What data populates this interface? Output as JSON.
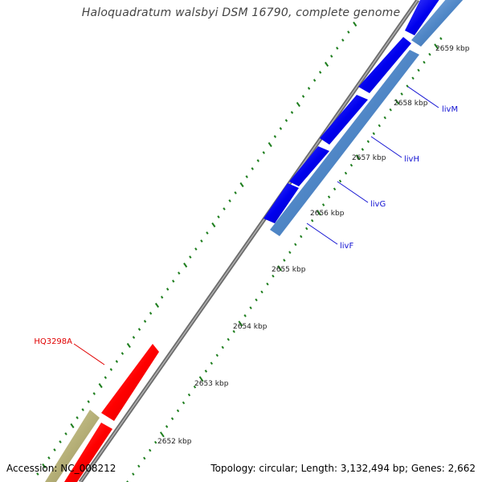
{
  "title": "Haloquadratum walsbyi DSM 16790, complete genome",
  "footer": {
    "accession": "Accession: NC_008212",
    "topology": "Topology: circular; Length: 3,132,494 bp; Genes: 2,662"
  },
  "colors": {
    "backbone": "#888888",
    "tick": "#1e7e1e",
    "forward_gene": "#0a0aff",
    "reverse_gene": "#5a8fcf",
    "red_gene": "#ff1010",
    "olive_gene": "#b8b279",
    "blue_label": "#1212d2",
    "red_label": "#e00000"
  },
  "ticks": [
    {
      "label": "2652 kbp"
    },
    {
      "label": "2653 kbp"
    },
    {
      "label": "2654 kbp"
    },
    {
      "label": "2655 kbp"
    },
    {
      "label": "2656 kbp"
    },
    {
      "label": "2657 kbp"
    },
    {
      "label": "2658 kbp"
    },
    {
      "label": "2659 kbp"
    }
  ],
  "gene_labels": [
    {
      "id": "livM",
      "text": "livM",
      "color": "blue"
    },
    {
      "id": "livH",
      "text": "livH",
      "color": "blue"
    },
    {
      "id": "livG",
      "text": "livG",
      "color": "blue"
    },
    {
      "id": "livF",
      "text": "livF",
      "color": "blue"
    },
    {
      "id": "HQ3298A",
      "text": "HQ3298A",
      "color": "red"
    }
  ]
}
